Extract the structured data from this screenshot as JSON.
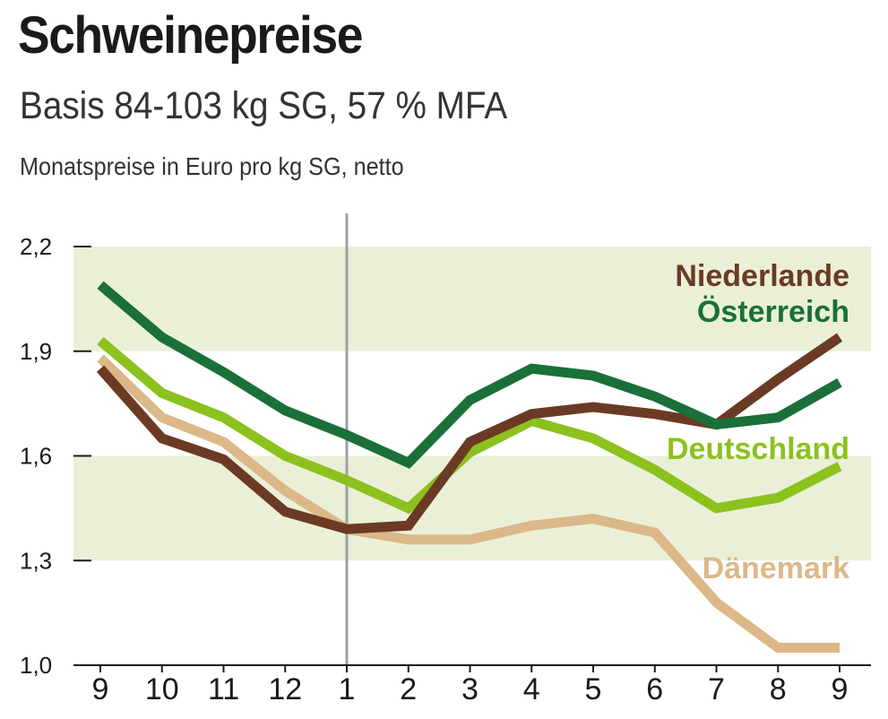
{
  "header": {
    "title": "Schweinepreise",
    "subtitle": "Basis 84-103 kg SG, 57 % MFA",
    "unit_note": "Monatspreise in Euro pro kg SG, netto"
  },
  "colors": {
    "band": "#eaf0d8",
    "axis": "#1a1a1a",
    "divider": "#a0a0a0",
    "Niederlande": "#6b3a24",
    "Österreich": "#1a7038",
    "Deutschland": "#8cc11e",
    "Dänemark": "#dcb888"
  },
  "chart_data": {
    "type": "line",
    "categories": [
      "9",
      "10",
      "11",
      "12",
      "1",
      "2",
      "3",
      "4",
      "5",
      "6",
      "7",
      "8",
      "9"
    ],
    "y_ticks": [
      "2,2",
      "1,9",
      "1,6",
      "1,3",
      "1,0"
    ],
    "ylim": [
      1.0,
      2.2
    ],
    "year_divider_after_index": 4,
    "bands": [
      [
        1.9,
        2.2
      ],
      [
        1.3,
        1.6
      ]
    ],
    "grid": false,
    "legend": "labels at line ends (right)",
    "series": [
      {
        "name": "Dänemark",
        "values": [
          1.88,
          1.71,
          1.64,
          1.5,
          1.39,
          1.36,
          1.36,
          1.4,
          1.42,
          1.38,
          1.18,
          1.05,
          1.05
        ]
      },
      {
        "name": "Deutschland",
        "values": [
          1.93,
          1.78,
          1.71,
          1.6,
          1.53,
          1.45,
          1.61,
          1.7,
          1.65,
          1.56,
          1.45,
          1.48,
          1.57
        ]
      },
      {
        "name": "Niederlande",
        "values": [
          1.85,
          1.65,
          1.59,
          1.44,
          1.39,
          1.4,
          1.64,
          1.72,
          1.74,
          1.72,
          1.69,
          1.82,
          1.94
        ]
      },
      {
        "name": "Österreich",
        "values": [
          2.09,
          1.94,
          1.84,
          1.73,
          1.66,
          1.58,
          1.76,
          1.85,
          1.83,
          1.77,
          1.69,
          1.71,
          1.81
        ]
      }
    ]
  }
}
